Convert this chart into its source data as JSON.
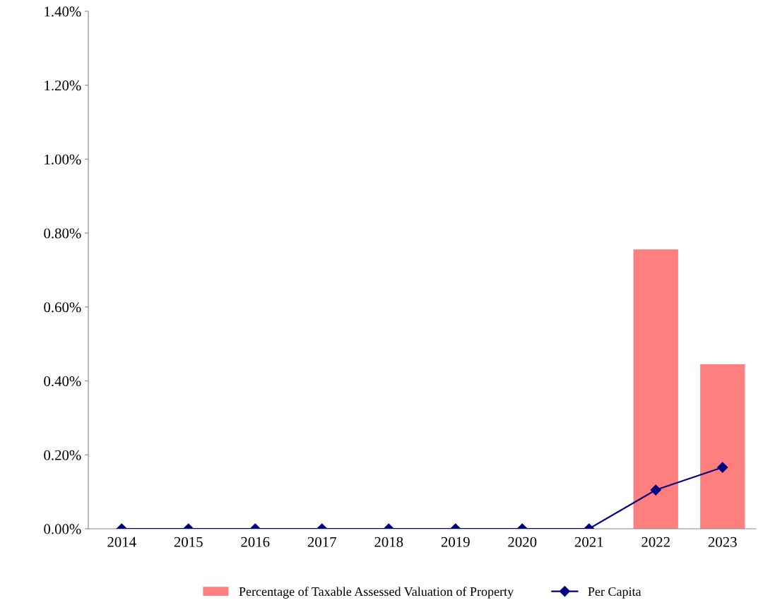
{
  "chart_data": {
    "type": "bar",
    "categories": [
      "2014",
      "2015",
      "2016",
      "2017",
      "2018",
      "2019",
      "2020",
      "2021",
      "2022",
      "2023"
    ],
    "series": [
      {
        "name": "Percentage of Taxable Assessed Valuation of Property",
        "color": "#ff7f7f",
        "values": [
          0,
          0,
          0,
          0,
          0,
          0,
          0,
          0,
          0.756,
          0.445
        ]
      },
      {
        "name": "Per Capita",
        "type": "line",
        "color": "#000080",
        "values": [
          0,
          0,
          0,
          0,
          0,
          0,
          0,
          0,
          0.105,
          0.166
        ]
      }
    ],
    "marker": "diamond",
    "ylim": [
      0,
      1.4
    ],
    "yticks": [
      {
        "value": 0,
        "label": "0.00%"
      },
      {
        "value": 0.2,
        "label": "0.20%"
      },
      {
        "value": 0.4,
        "label": "0.40%"
      },
      {
        "value": 0.6,
        "label": "0.60%"
      },
      {
        "value": 0.8,
        "label": "0.80%"
      },
      {
        "value": 1.0,
        "label": "1.00%"
      },
      {
        "value": 1.2,
        "label": "1.20%"
      },
      {
        "value": 1.4,
        "label": "1.40%"
      }
    ],
    "grid": false,
    "legend": "bottom"
  }
}
